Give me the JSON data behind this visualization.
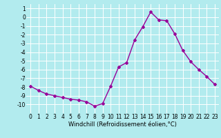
{
  "hours": [
    0,
    1,
    2,
    3,
    4,
    5,
    6,
    7,
    8,
    9,
    10,
    11,
    12,
    13,
    14,
    15,
    16,
    17,
    18,
    19,
    20,
    21,
    22,
    23
  ],
  "values": [
    -7.9,
    -8.4,
    -8.8,
    -9.0,
    -9.2,
    -9.4,
    -9.5,
    -9.7,
    -10.2,
    -9.9,
    -7.9,
    -5.7,
    -5.2,
    -2.6,
    -1.1,
    0.6,
    -0.3,
    -0.4,
    -1.9,
    -3.8,
    -5.1,
    -6.0,
    -6.8,
    -7.7
  ],
  "line_color": "#990099",
  "marker": "D",
  "marker_size": 2,
  "bg_color": "#b2ebee",
  "grid_color": "#ffffff",
  "xlabel": "Windchill (Refroidissement éolien,°C)",
  "xlabel_fontsize": 6.0,
  "ylim": [
    -11,
    1.5
  ],
  "yticks": [
    1,
    0,
    -1,
    -2,
    -3,
    -4,
    -5,
    -6,
    -7,
    -8,
    -9,
    -10
  ],
  "xticks": [
    0,
    1,
    2,
    3,
    4,
    5,
    6,
    7,
    8,
    9,
    10,
    11,
    12,
    13,
    14,
    15,
    16,
    17,
    18,
    19,
    20,
    21,
    22,
    23
  ],
  "tick_fontsize": 5.5,
  "line_width": 1.0
}
